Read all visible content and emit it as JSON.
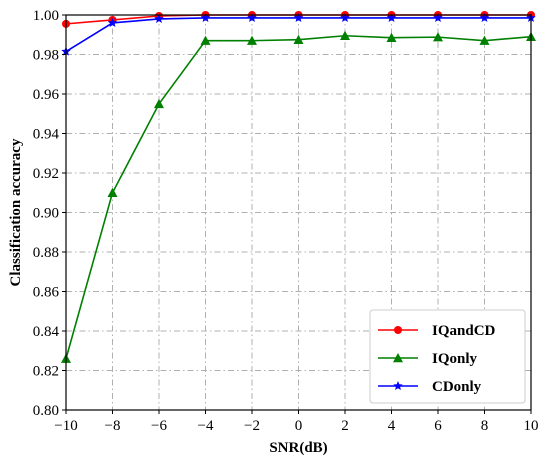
{
  "chart_data": {
    "type": "line",
    "xlabel": "SNR(dB)",
    "ylabel": "Classification accuracy",
    "xlim": [
      -10,
      10
    ],
    "ylim": [
      0.8,
      1.0
    ],
    "x": [
      -10,
      -8,
      -6,
      -4,
      -2,
      0,
      2,
      4,
      6,
      8,
      10
    ],
    "x_tick_labels": [
      "−10",
      "−8",
      "−6",
      "−4",
      "−2",
      "0",
      "2",
      "4",
      "6",
      "8",
      "10"
    ],
    "y_ticks": [
      0.8,
      0.82,
      0.84,
      0.86,
      0.88,
      0.9,
      0.92,
      0.94,
      0.96,
      0.98,
      1.0
    ],
    "y_tick_labels": [
      "0.80",
      "0.82",
      "0.84",
      "0.86",
      "0.88",
      "0.90",
      "0.92",
      "0.94",
      "0.96",
      "0.98",
      "1.00"
    ],
    "grid": true,
    "legend_position": "bottom-right",
    "series": [
      {
        "name": "IQandCD",
        "color": "#ff0000",
        "marker": "circle",
        "values": [
          0.9955,
          0.9975,
          0.9995,
          1.0,
          1.0,
          1.0,
          1.0,
          1.0,
          1.0,
          1.0,
          1.0
        ]
      },
      {
        "name": "IQonly",
        "color": "#008000",
        "marker": "triangle",
        "values": [
          0.826,
          0.91,
          0.955,
          0.987,
          0.987,
          0.9875,
          0.9895,
          0.9885,
          0.9888,
          0.987,
          0.989
        ]
      },
      {
        "name": "CDonly",
        "color": "#0000ff",
        "marker": "star",
        "values": [
          0.9815,
          0.996,
          0.998,
          0.9985,
          0.9985,
          0.9985,
          0.9985,
          0.9985,
          0.9985,
          0.9985,
          0.9985
        ]
      }
    ]
  }
}
